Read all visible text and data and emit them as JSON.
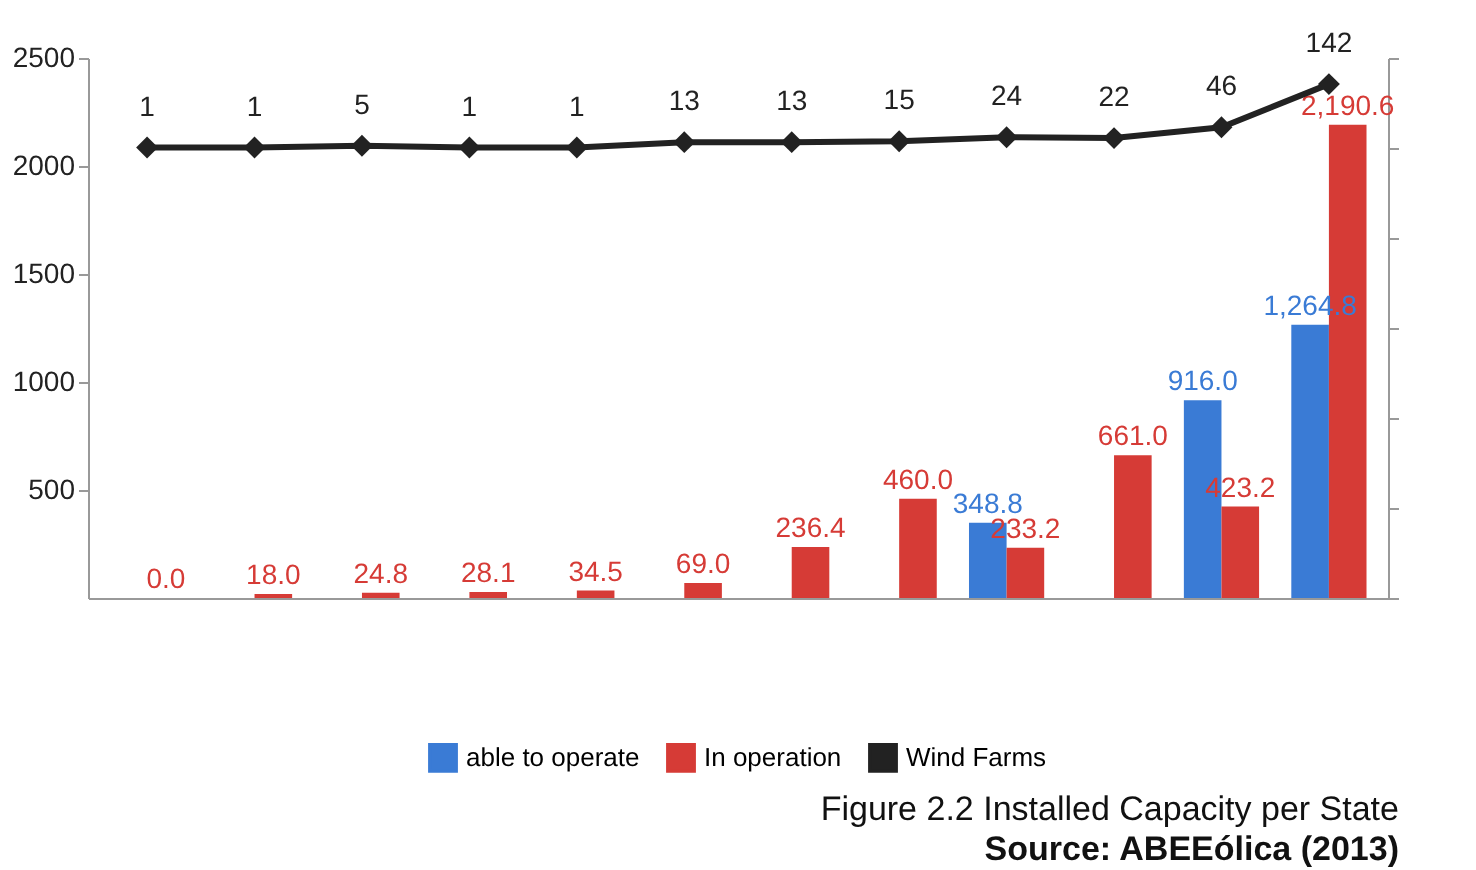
{
  "chart_data": {
    "type": "bar",
    "title": "Figure 2.2 Installed Capacity per State",
    "annotations": [
      "Source: ABEEólica (2013)"
    ],
    "categories": [
      null,
      null,
      null,
      null,
      null,
      null,
      null,
      null,
      null,
      null,
      null,
      null
    ],
    "series": [
      {
        "name": "able to operate",
        "color": "#3a7bd5",
        "values": [
          null,
          null,
          null,
          null,
          null,
          null,
          null,
          null,
          348.8,
          null,
          916.0,
          1264.8
        ],
        "value_labels": [
          null,
          null,
          null,
          null,
          null,
          null,
          null,
          null,
          "348.8",
          null,
          "916.0",
          "1,264.8"
        ]
      },
      {
        "name": "In operation",
        "color": "#d63b36",
        "values": [
          0.0,
          18.0,
          24.8,
          28.1,
          34.5,
          69.0,
          236.4,
          460.0,
          233.2,
          661.0,
          423.2,
          2190.6
        ],
        "value_labels": [
          "0.0",
          "18.0",
          "24.8",
          "28.1",
          "34.5",
          "69.0",
          "236.4",
          "460.0",
          "233.2",
          "661.0",
          "423.2",
          "2,190.6"
        ]
      },
      {
        "name": "Wind Farms",
        "type": "line",
        "axis": "y2",
        "color": "#222222",
        "marker": "diamond",
        "line_style": "solid",
        "values": [
          1,
          1,
          5,
          1,
          1,
          13,
          13,
          15,
          24,
          22,
          46,
          142
        ],
        "value_labels": [
          "1",
          "1",
          "5",
          "1",
          "1",
          "13",
          "13",
          "15",
          "24",
          "22",
          "46",
          "142"
        ]
      }
    ],
    "ylim": [
      0,
      2500
    ],
    "yticks": [
      500,
      1000,
      1500,
      2000,
      2500
    ],
    "y2lim": [
      -1000,
      200
    ],
    "y2ticks": [
      {
        "value": -1000,
        "label": null
      },
      {
        "value": -800,
        "label": null
      },
      {
        "value": -600,
        "label": null
      },
      {
        "value": -400,
        "label": null
      },
      {
        "value": -200,
        "label": null
      },
      {
        "value": 0,
        "label": null
      },
      {
        "value": 200,
        "label": null
      }
    ],
    "tick_labels": "y",
    "grid": false,
    "legend": "bottom"
  }
}
